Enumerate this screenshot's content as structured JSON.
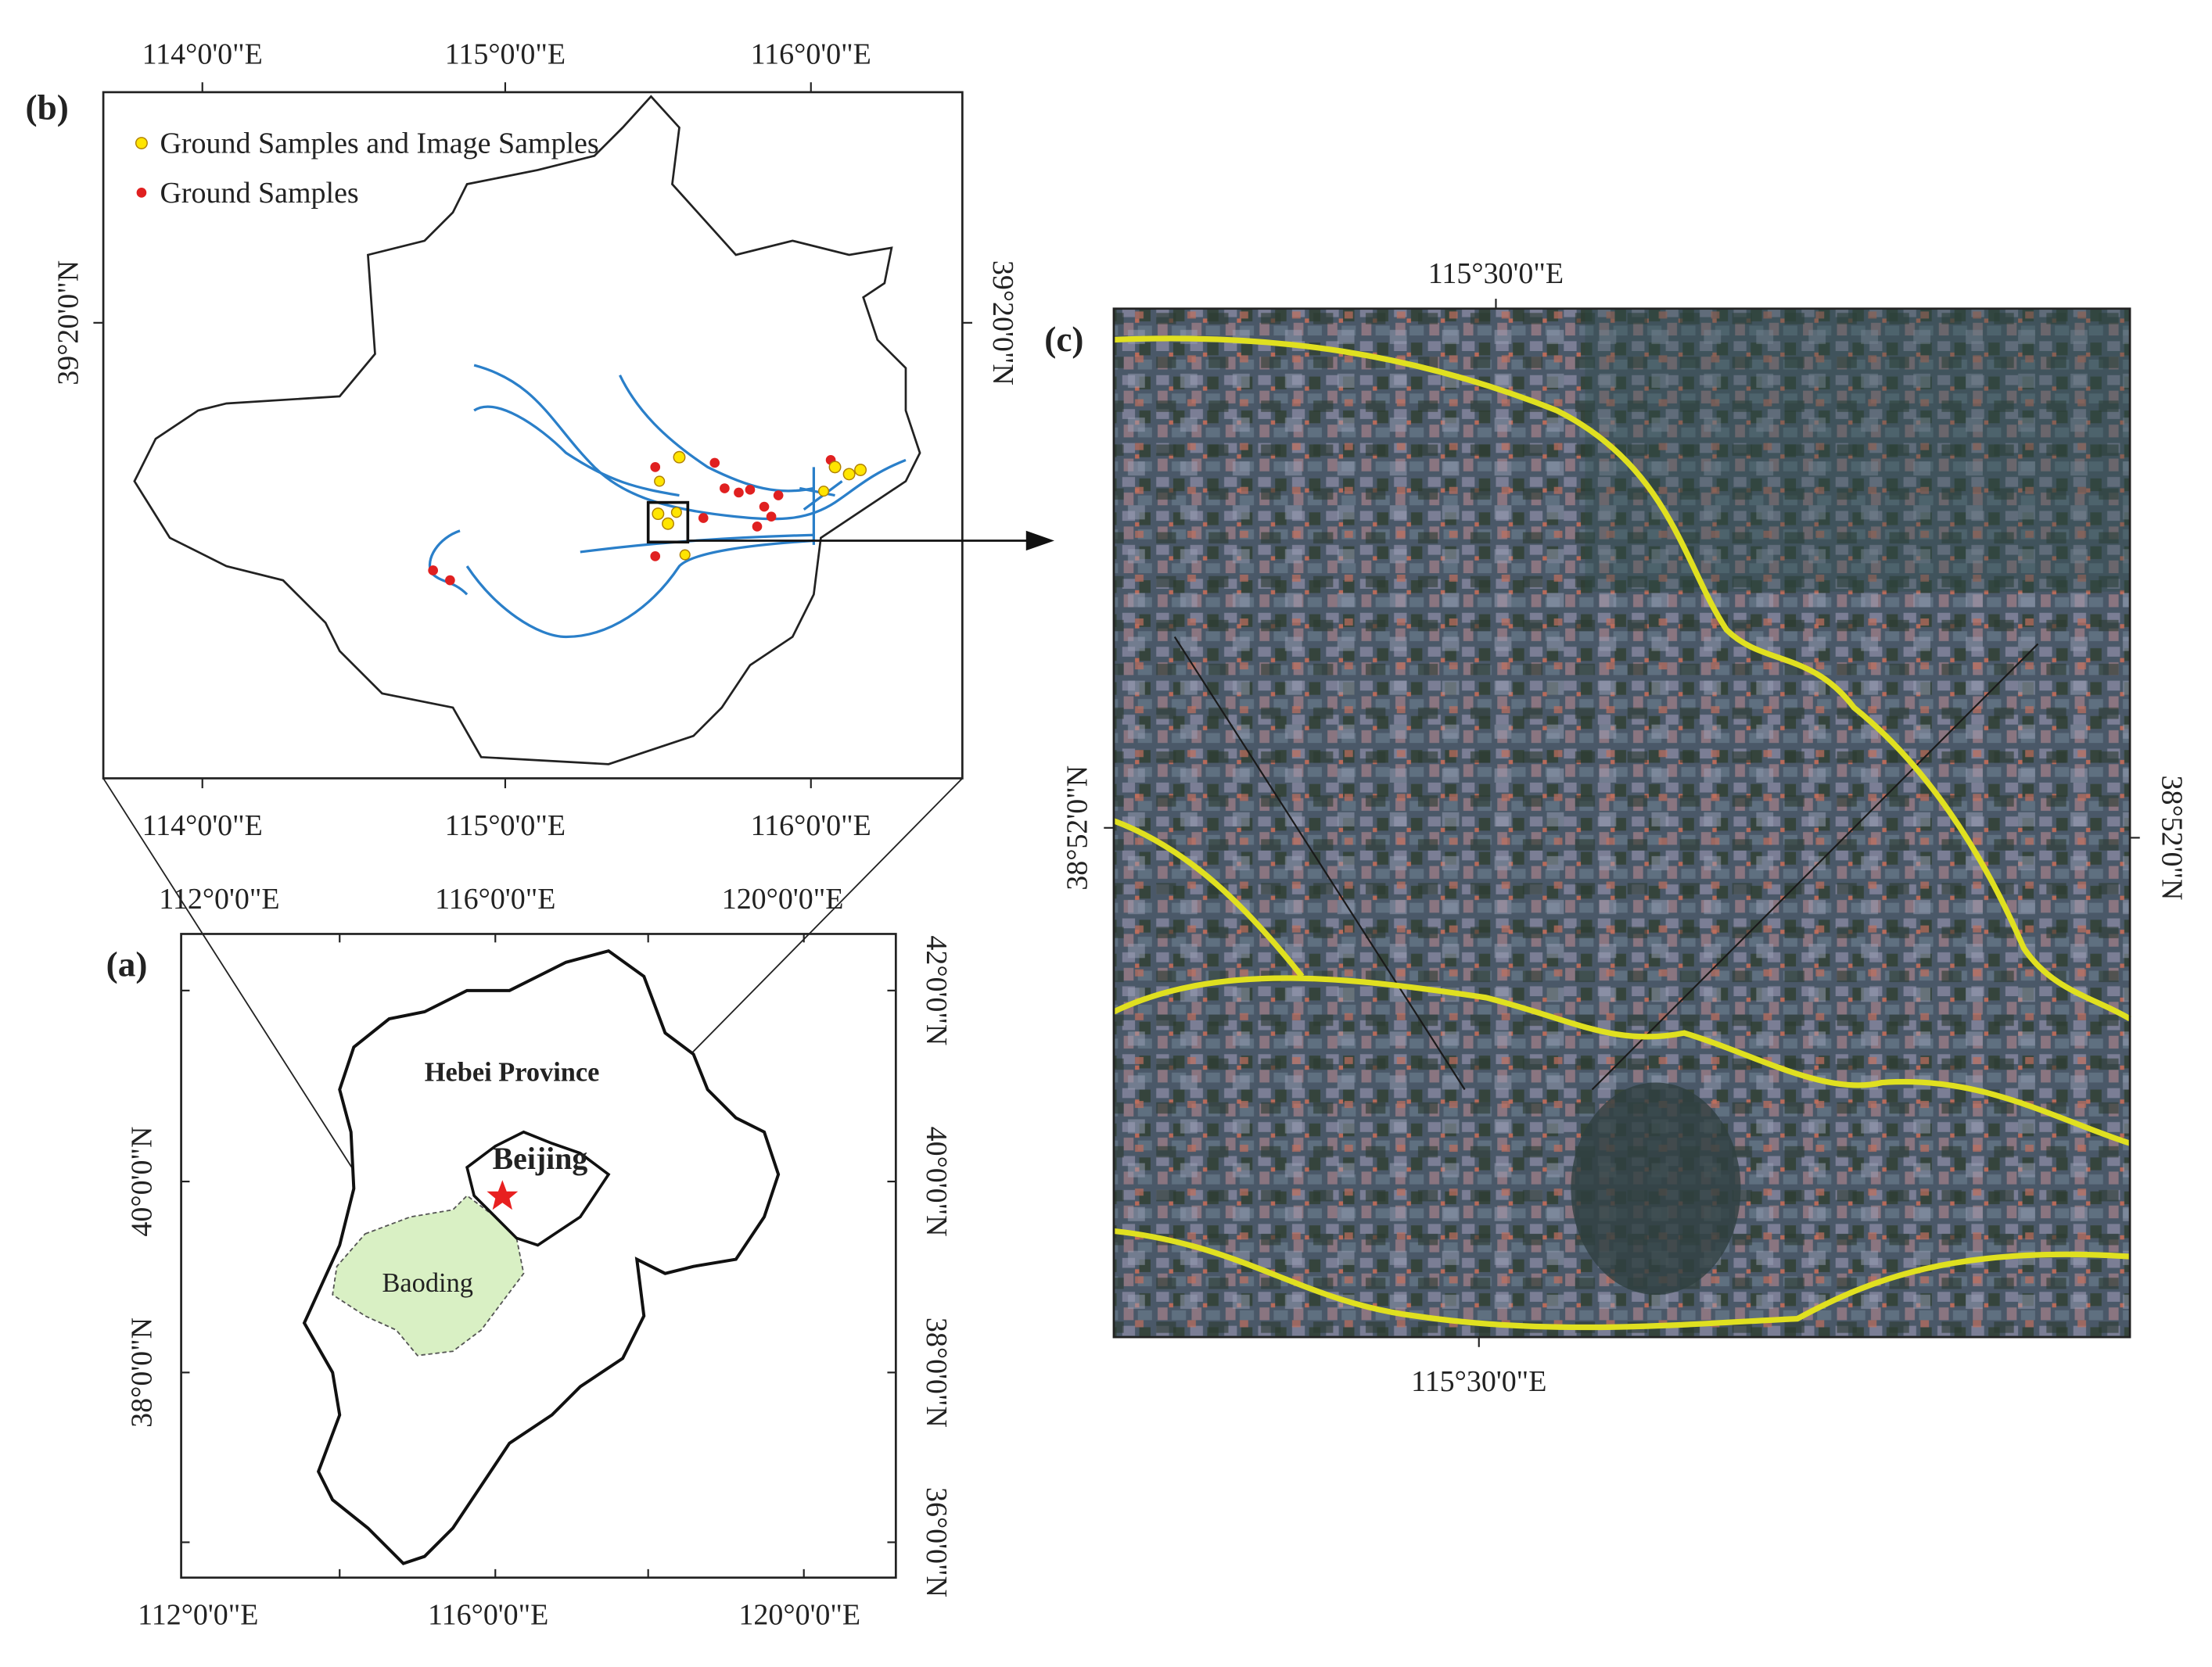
{
  "panel_b": {
    "label": "(b)",
    "top_ticks": [
      "114°0'0\"E",
      "115°0'0\"E",
      "116°0'0\"E"
    ],
    "bottom_ticks": [
      "114°0'0\"E",
      "115°0'0\"E",
      "116°0'0\"E"
    ],
    "left_ticks": [
      "39°20'0\"N"
    ],
    "right_ticks": [
      "39°20'0\"N"
    ],
    "legend": [
      "Ground Samples and Image Samples",
      "Ground Samples"
    ]
  },
  "panel_a": {
    "label": "(a)",
    "top_ticks": [
      "112°0'0\"E",
      "116°0'0\"E",
      "120°0'0\"E"
    ],
    "bottom_ticks": [
      "112°0'0\"E",
      "116°0'0\"E",
      "120°0'0\"E"
    ],
    "left_ticks": [
      "40°0'0\"N",
      "38°0'0\"N"
    ],
    "right_ticks": [
      "42°0'0\"N",
      "40°0'0\"N",
      "38°0'0\"N",
      "36°0'0\"N"
    ],
    "places": [
      "Hebei Province",
      "Beijing",
      "Baoding"
    ]
  },
  "panel_c": {
    "label": "(c)",
    "top_ticks": [
      "115°30'0\"E"
    ],
    "bottom_ticks": [
      "115°30'0\"E"
    ],
    "left_ticks": [
      "38°52'0\"N"
    ],
    "right_ticks": [
      "38°52'0\"N"
    ]
  }
}
